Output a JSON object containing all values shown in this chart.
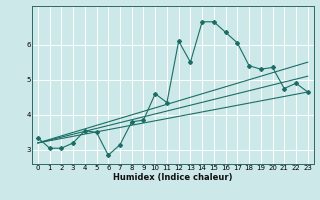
{
  "title": "",
  "xlabel": "Humidex (Indice chaleur)",
  "background_color": "#cce8e8",
  "grid_color": "#ffffff",
  "line_color": "#1a6e66",
  "xlim": [
    -0.5,
    23.5
  ],
  "ylim": [
    2.6,
    7.1
  ],
  "yticks": [
    3,
    4,
    5,
    6
  ],
  "xticks": [
    0,
    1,
    2,
    3,
    4,
    5,
    6,
    7,
    8,
    9,
    10,
    11,
    12,
    13,
    14,
    15,
    16,
    17,
    18,
    19,
    20,
    21,
    22,
    23
  ],
  "line1_x": [
    0,
    1,
    2,
    3,
    4,
    5,
    6,
    7,
    8,
    9,
    10,
    11,
    12,
    13,
    14,
    15,
    16,
    17,
    18,
    19,
    20,
    21,
    22,
    23
  ],
  "line1_y": [
    3.35,
    3.05,
    3.05,
    3.2,
    3.55,
    3.5,
    2.85,
    3.15,
    3.8,
    3.85,
    4.6,
    4.35,
    6.1,
    5.5,
    6.65,
    6.65,
    6.35,
    6.05,
    5.4,
    5.3,
    5.35,
    4.75,
    4.9,
    4.65
  ],
  "line2_x": [
    0,
    23
  ],
  "line2_y": [
    3.2,
    4.65
  ],
  "line3_x": [
    0,
    23
  ],
  "line3_y": [
    3.2,
    5.1
  ],
  "line4_x": [
    0,
    23
  ],
  "line4_y": [
    3.2,
    5.5
  ]
}
